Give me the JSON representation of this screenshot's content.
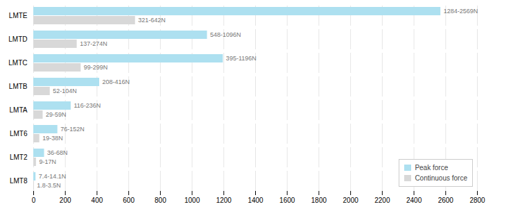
{
  "chart_data": {
    "type": "bar",
    "orientation": "horizontal",
    "categories": [
      "LMTE",
      "LMTD",
      "LMTC",
      "LMTB",
      "LMTA",
      "LMT6",
      "LMT2",
      "LMT8"
    ],
    "series": [
      {
        "name": "Peak force",
        "color": "#ADE0F0",
        "values": [
          2569,
          1096,
          1196,
          416,
          236,
          152,
          68,
          14.1
        ],
        "value_labels": [
          "1284-2569N",
          "548-1096N",
          "395-1196N",
          "208-416N",
          "116-236N",
          "76-152N",
          "36-68N",
          "7.4-14.1N"
        ]
      },
      {
        "name": "Continuous force",
        "color": "#D8D8D8",
        "values": [
          642,
          274,
          299,
          104,
          59,
          38,
          17,
          3.5
        ],
        "value_labels": [
          "321-642N",
          "137-274N",
          "99-299N",
          "52-104N",
          "29-59N",
          "19-38N",
          "9-17N",
          "1.8-3.5N"
        ]
      }
    ],
    "xlim": [
      0,
      2800
    ],
    "xticks": [
      0,
      200,
      400,
      600,
      800,
      1000,
      1200,
      1400,
      1600,
      1800,
      2000,
      2200,
      2400,
      2600,
      2800
    ],
    "grid": true,
    "legend": "lower right",
    "data_labels": true
  }
}
